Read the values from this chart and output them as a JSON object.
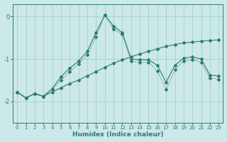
{
  "xlabel": "Humidex (Indice chaleur)",
  "xlim": [
    -0.5,
    23.5
  ],
  "ylim": [
    -2.5,
    0.3
  ],
  "yticks": [
    -2,
    -1,
    0
  ],
  "xticks": [
    0,
    1,
    2,
    3,
    4,
    5,
    6,
    7,
    8,
    9,
    10,
    11,
    12,
    13,
    14,
    15,
    16,
    17,
    18,
    19,
    20,
    21,
    22,
    23
  ],
  "bg_color": "#cce8e8",
  "grid_color": "#99cccc",
  "line_color": "#2e7d6e",
  "line1_y": [
    -1.78,
    -1.92,
    -1.82,
    -1.88,
    -1.78,
    -1.68,
    -1.58,
    -1.5,
    -1.4,
    -1.3,
    -1.2,
    -1.1,
    -1.02,
    -0.95,
    -0.88,
    -0.82,
    -0.76,
    -0.7,
    -0.66,
    -0.62,
    -0.6,
    -0.58,
    -0.56,
    -0.55
  ],
  "line2_y": [
    -1.78,
    -1.92,
    -1.82,
    -1.88,
    -1.72,
    -1.5,
    -1.3,
    -1.12,
    -0.9,
    -0.48,
    0.04,
    -0.3,
    -0.42,
    -1.05,
    -1.08,
    -1.08,
    -1.28,
    -1.72,
    -1.25,
    -1.05,
    -1.02,
    -1.08,
    -1.45,
    -1.48
  ],
  "line3_y": [
    -1.78,
    -1.92,
    -1.82,
    -1.88,
    -1.7,
    -1.42,
    -1.22,
    -1.05,
    -0.82,
    -0.38,
    0.04,
    -0.22,
    -0.38,
    -1.0,
    -1.02,
    -1.02,
    -1.15,
    -1.55,
    -1.15,
    -0.98,
    -0.95,
    -1.0,
    -1.38,
    -1.4
  ]
}
